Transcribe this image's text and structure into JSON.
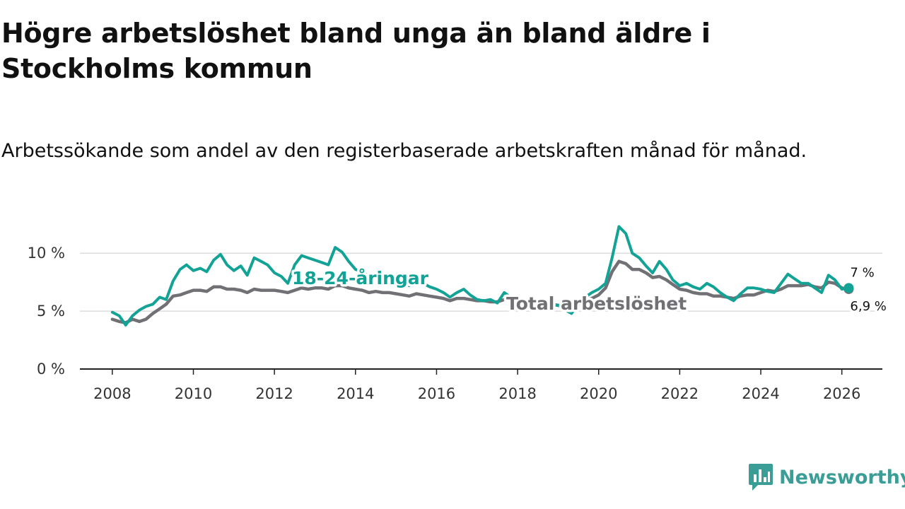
{
  "title": "Högre arbetslöshet bland unga än bland äldre i Stockholms kommun",
  "subtitle": "Arbetssökande som andel av den registerbaserade arbetskraften månad för månad.",
  "brand": {
    "name": "Newsworthy",
    "color": "#3a9d96",
    "icon": "newsworthy-logo-icon"
  },
  "colors": {
    "youth": "#13a396",
    "total": "#707075",
    "axis": "#222222",
    "grid": "#dddddd"
  },
  "chart_data": {
    "type": "line",
    "title": "Högre arbetslöshet bland unga än bland äldre i Stockholms kommun",
    "xlabel": "",
    "ylabel": "",
    "xlim": [
      2007.2,
      2027.0
    ],
    "ylim": [
      0,
      10.5
    ],
    "x_ticks": [
      2008,
      2010,
      2012,
      2014,
      2016,
      2018,
      2020,
      2022,
      2024,
      2026
    ],
    "x_tick_labels": [
      "2008",
      "2010",
      "2012",
      "2014",
      "2016",
      "2018",
      "2020",
      "2022",
      "2024",
      "2026"
    ],
    "y_ticks": [
      0,
      5,
      10
    ],
    "y_tick_labels": [
      "0 %",
      "5 %",
      "10 %"
    ],
    "grid": true,
    "series": [
      {
        "name": "18-24-åringar",
        "label": "18-24-åringar",
        "color": "#13a396",
        "end_label": "7 %",
        "points": [
          [
            2008.0,
            4.9
          ],
          [
            2008.17,
            4.6
          ],
          [
            2008.33,
            3.8
          ],
          [
            2008.5,
            4.6
          ],
          [
            2008.67,
            5.1
          ],
          [
            2008.83,
            5.4
          ],
          [
            2009.0,
            5.6
          ],
          [
            2009.17,
            6.2
          ],
          [
            2009.33,
            6.0
          ],
          [
            2009.5,
            7.6
          ],
          [
            2009.67,
            8.6
          ],
          [
            2009.83,
            9.0
          ],
          [
            2010.0,
            8.5
          ],
          [
            2010.17,
            8.7
          ],
          [
            2010.33,
            8.4
          ],
          [
            2010.5,
            9.4
          ],
          [
            2010.67,
            9.9
          ],
          [
            2010.83,
            9.0
          ],
          [
            2011.0,
            8.5
          ],
          [
            2011.17,
            8.9
          ],
          [
            2011.33,
            8.1
          ],
          [
            2011.5,
            9.6
          ],
          [
            2011.67,
            9.3
          ],
          [
            2011.83,
            9.0
          ],
          [
            2012.0,
            8.3
          ],
          [
            2012.17,
            8.0
          ],
          [
            2012.33,
            7.4
          ],
          [
            2012.5,
            9.0
          ],
          [
            2012.67,
            9.8
          ],
          [
            2012.83,
            9.6
          ],
          [
            2013.0,
            9.4
          ],
          [
            2013.17,
            9.2
          ],
          [
            2013.33,
            9.0
          ],
          [
            2013.5,
            10.5
          ],
          [
            2013.67,
            10.1
          ],
          [
            2013.83,
            9.3
          ],
          [
            2014.0,
            8.6
          ],
          [
            2014.17,
            8.4
          ],
          [
            2014.33,
            8.0
          ],
          [
            2014.5,
            8.2
          ],
          [
            2014.67,
            7.7
          ],
          [
            2014.83,
            7.8
          ],
          [
            2015.0,
            7.5
          ],
          [
            2015.17,
            7.4
          ],
          [
            2015.33,
            7.2
          ],
          [
            2015.5,
            8.2
          ],
          [
            2015.67,
            7.4
          ],
          [
            2015.83,
            7.1
          ],
          [
            2016.0,
            6.9
          ],
          [
            2016.17,
            6.6
          ],
          [
            2016.33,
            6.2
          ],
          [
            2016.5,
            6.6
          ],
          [
            2016.67,
            6.9
          ],
          [
            2016.83,
            6.4
          ],
          [
            2017.0,
            6.0
          ],
          [
            2017.17,
            5.9
          ],
          [
            2017.33,
            6.0
          ],
          [
            2017.5,
            5.7
          ],
          [
            2017.67,
            6.6
          ],
          [
            2017.83,
            6.2
          ],
          [
            2018.0,
            5.9
          ],
          [
            2018.17,
            5.6
          ],
          [
            2018.33,
            5.3
          ],
          [
            2018.5,
            6.0
          ],
          [
            2018.67,
            5.8
          ],
          [
            2018.83,
            5.5
          ],
          [
            2019.0,
            5.5
          ],
          [
            2019.17,
            5.1
          ],
          [
            2019.33,
            4.8
          ],
          [
            2019.5,
            5.6
          ],
          [
            2019.67,
            6.2
          ],
          [
            2019.83,
            6.6
          ],
          [
            2020.0,
            6.9
          ],
          [
            2020.17,
            7.4
          ],
          [
            2020.33,
            9.6
          ],
          [
            2020.5,
            12.3
          ],
          [
            2020.67,
            11.7
          ],
          [
            2020.83,
            10.0
          ],
          [
            2021.0,
            9.6
          ],
          [
            2021.17,
            8.9
          ],
          [
            2021.33,
            8.3
          ],
          [
            2021.5,
            9.3
          ],
          [
            2021.67,
            8.6
          ],
          [
            2021.83,
            7.7
          ],
          [
            2022.0,
            7.2
          ],
          [
            2022.17,
            7.4
          ],
          [
            2022.33,
            7.1
          ],
          [
            2022.5,
            6.9
          ],
          [
            2022.67,
            7.4
          ],
          [
            2022.83,
            7.1
          ],
          [
            2023.0,
            6.6
          ],
          [
            2023.17,
            6.2
          ],
          [
            2023.33,
            5.9
          ],
          [
            2023.5,
            6.5
          ],
          [
            2023.67,
            7.0
          ],
          [
            2023.83,
            7.0
          ],
          [
            2024.0,
            6.9
          ],
          [
            2024.17,
            6.7
          ],
          [
            2024.33,
            6.6
          ],
          [
            2024.5,
            7.4
          ],
          [
            2024.67,
            8.2
          ],
          [
            2024.83,
            7.8
          ],
          [
            2025.0,
            7.4
          ],
          [
            2025.17,
            7.4
          ],
          [
            2025.33,
            7.0
          ],
          [
            2025.5,
            6.6
          ],
          [
            2025.67,
            8.1
          ],
          [
            2025.83,
            7.7
          ],
          [
            2026.0,
            6.9
          ],
          [
            2026.17,
            7.0
          ]
        ]
      },
      {
        "name": "Total arbetslöshet",
        "label": "Total arbetslöshet",
        "color": "#707075",
        "end_label": "6,9 %",
        "points": [
          [
            2008.0,
            4.3
          ],
          [
            2008.17,
            4.1
          ],
          [
            2008.33,
            4.0
          ],
          [
            2008.5,
            4.3
          ],
          [
            2008.67,
            4.1
          ],
          [
            2008.83,
            4.3
          ],
          [
            2009.0,
            4.8
          ],
          [
            2009.17,
            5.2
          ],
          [
            2009.33,
            5.6
          ],
          [
            2009.5,
            6.3
          ],
          [
            2009.67,
            6.4
          ],
          [
            2009.83,
            6.6
          ],
          [
            2010.0,
            6.8
          ],
          [
            2010.17,
            6.8
          ],
          [
            2010.33,
            6.7
          ],
          [
            2010.5,
            7.1
          ],
          [
            2010.67,
            7.1
          ],
          [
            2010.83,
            6.9
          ],
          [
            2011.0,
            6.9
          ],
          [
            2011.17,
            6.8
          ],
          [
            2011.33,
            6.6
          ],
          [
            2011.5,
            6.9
          ],
          [
            2011.67,
            6.8
          ],
          [
            2011.83,
            6.8
          ],
          [
            2012.0,
            6.8
          ],
          [
            2012.17,
            6.7
          ],
          [
            2012.33,
            6.6
          ],
          [
            2012.5,
            6.8
          ],
          [
            2012.67,
            7.0
          ],
          [
            2012.83,
            6.9
          ],
          [
            2013.0,
            7.0
          ],
          [
            2013.17,
            7.0
          ],
          [
            2013.33,
            6.9
          ],
          [
            2013.5,
            7.2
          ],
          [
            2013.67,
            7.2
          ],
          [
            2013.83,
            7.0
          ],
          [
            2014.0,
            6.9
          ],
          [
            2014.17,
            6.8
          ],
          [
            2014.33,
            6.6
          ],
          [
            2014.5,
            6.7
          ],
          [
            2014.67,
            6.6
          ],
          [
            2014.83,
            6.6
          ],
          [
            2015.0,
            6.5
          ],
          [
            2015.17,
            6.4
          ],
          [
            2015.33,
            6.3
          ],
          [
            2015.5,
            6.5
          ],
          [
            2015.67,
            6.4
          ],
          [
            2015.83,
            6.3
          ],
          [
            2016.0,
            6.2
          ],
          [
            2016.17,
            6.1
          ],
          [
            2016.33,
            5.9
          ],
          [
            2016.5,
            6.1
          ],
          [
            2016.67,
            6.1
          ],
          [
            2016.83,
            6.0
          ],
          [
            2017.0,
            5.9
          ],
          [
            2017.17,
            5.9
          ],
          [
            2017.33,
            5.8
          ],
          [
            2017.5,
            5.8
          ],
          [
            2017.67,
            6.0
          ],
          [
            2017.83,
            6.0
          ],
          [
            2018.0,
            5.8
          ],
          [
            2018.17,
            5.7
          ],
          [
            2018.33,
            5.6
          ],
          [
            2018.5,
            5.7
          ],
          [
            2018.67,
            5.7
          ],
          [
            2018.83,
            5.6
          ],
          [
            2019.0,
            5.5
          ],
          [
            2019.17,
            5.4
          ],
          [
            2019.33,
            5.3
          ],
          [
            2019.5,
            5.6
          ],
          [
            2019.67,
            5.9
          ],
          [
            2019.83,
            6.1
          ],
          [
            2020.0,
            6.4
          ],
          [
            2020.17,
            7.0
          ],
          [
            2020.33,
            8.4
          ],
          [
            2020.5,
            9.3
          ],
          [
            2020.67,
            9.1
          ],
          [
            2020.83,
            8.6
          ],
          [
            2021.0,
            8.6
          ],
          [
            2021.17,
            8.3
          ],
          [
            2021.33,
            7.9
          ],
          [
            2021.5,
            8.0
          ],
          [
            2021.67,
            7.7
          ],
          [
            2021.83,
            7.3
          ],
          [
            2022.0,
            6.9
          ],
          [
            2022.17,
            6.8
          ],
          [
            2022.33,
            6.6
          ],
          [
            2022.5,
            6.5
          ],
          [
            2022.67,
            6.5
          ],
          [
            2022.83,
            6.3
          ],
          [
            2023.0,
            6.3
          ],
          [
            2023.17,
            6.2
          ],
          [
            2023.33,
            6.1
          ],
          [
            2023.5,
            6.3
          ],
          [
            2023.67,
            6.4
          ],
          [
            2023.83,
            6.4
          ],
          [
            2024.0,
            6.6
          ],
          [
            2024.17,
            6.8
          ],
          [
            2024.33,
            6.7
          ],
          [
            2024.5,
            6.9
          ],
          [
            2024.67,
            7.2
          ],
          [
            2024.83,
            7.2
          ],
          [
            2025.0,
            7.2
          ],
          [
            2025.17,
            7.3
          ],
          [
            2025.33,
            7.1
          ],
          [
            2025.5,
            7.0
          ],
          [
            2025.67,
            7.5
          ],
          [
            2025.83,
            7.4
          ],
          [
            2026.0,
            7.0
          ],
          [
            2026.17,
            6.9
          ]
        ]
      }
    ]
  }
}
